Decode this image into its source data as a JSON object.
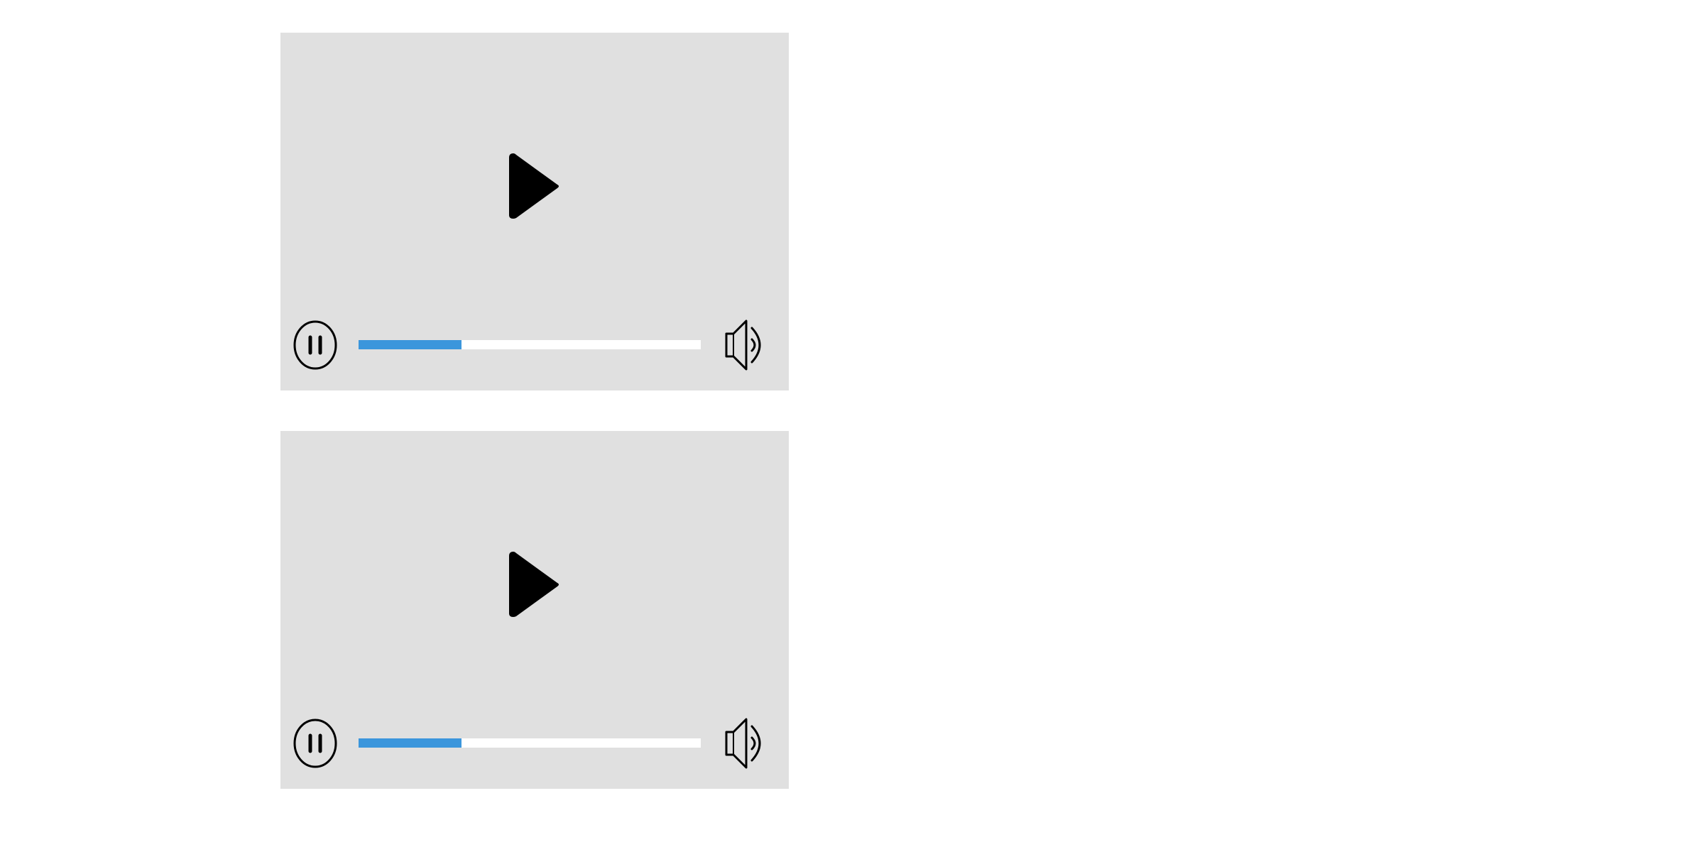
{
  "players": [
    {
      "play_icon": "play-icon",
      "pause_icon": "pause-icon",
      "volume_icon": "volume-icon",
      "progress_fraction": 0.3
    },
    {
      "play_icon": "play-icon",
      "pause_icon": "pause-icon",
      "volume_icon": "volume-icon",
      "progress_fraction": 0.3
    }
  ],
  "colors": {
    "player_background": "#e0e0e0",
    "progress_fill": "#3b96dc",
    "progress_track": "#ffffff",
    "icon": "#000000"
  }
}
